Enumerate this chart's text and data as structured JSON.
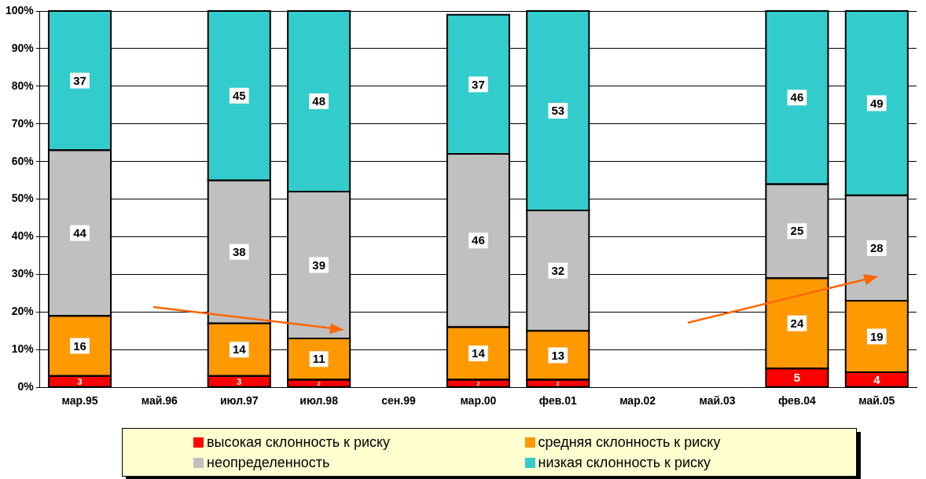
{
  "chart_data": {
    "type": "bar",
    "stacked": true,
    "categories": [
      "мар.95",
      "май.96",
      "июл.97",
      "июл.98",
      "сен.99",
      "мар.00",
      "фев.01",
      "мар.02",
      "май.03",
      "фев.04",
      "май.05"
    ],
    "series": [
      {
        "name": "высокая склонность к риску",
        "color": "#ff0000",
        "values": [
          3,
          null,
          3,
          2,
          null,
          2,
          2,
          null,
          null,
          5,
          4
        ]
      },
      {
        "name": "средняя склонность к риску",
        "color": "#ff9900",
        "values": [
          16,
          null,
          14,
          11,
          null,
          14,
          13,
          null,
          null,
          24,
          19
        ]
      },
      {
        "name": "неопределенность",
        "color": "#c0c0c0",
        "values": [
          44,
          null,
          38,
          39,
          null,
          46,
          32,
          null,
          null,
          25,
          28
        ]
      },
      {
        "name": "низкая склонность к риску",
        "color": "#33cccc",
        "values": [
          37,
          null,
          45,
          48,
          null,
          37,
          53,
          null,
          null,
          46,
          49
        ]
      }
    ],
    "ylim": [
      0,
      100
    ],
    "yticks": [
      {
        "value": 0,
        "label": "0%"
      },
      {
        "value": 10,
        "label": "10%"
      },
      {
        "value": 20,
        "label": "20%"
      },
      {
        "value": 30,
        "label": "30%"
      },
      {
        "value": 40,
        "label": "40%"
      },
      {
        "value": 50,
        "label": "50%"
      },
      {
        "value": 60,
        "label": "60%"
      },
      {
        "value": 70,
        "label": "70%"
      },
      {
        "value": 80,
        "label": "80%"
      },
      {
        "value": 90,
        "label": "90%"
      },
      {
        "value": 100,
        "label": "100%"
      }
    ],
    "grid": "y",
    "legend": "bottom",
    "data_labels": true
  }
}
